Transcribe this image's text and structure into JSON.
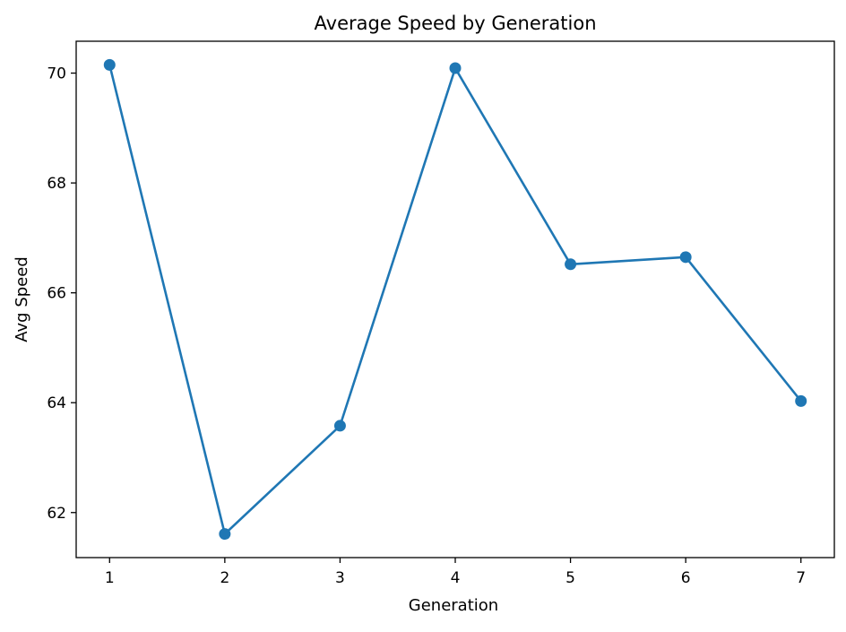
{
  "chart_data": {
    "type": "line",
    "title": "Average Speed by Generation",
    "xlabel": "Generation",
    "ylabel": "Avg Speed",
    "x": [
      1,
      2,
      3,
      4,
      5,
      6,
      7
    ],
    "series": [
      {
        "values": [
          70.15,
          61.61,
          63.58,
          70.09,
          66.52,
          66.65,
          64.03
        ],
        "color": "#1f77b4",
        "marker": "circle"
      }
    ],
    "xticks": [
      "1",
      "2",
      "3",
      "4",
      "5",
      "6",
      "7"
    ],
    "yticks": [
      62,
      64,
      66,
      68,
      70
    ],
    "xlim": [
      0.71,
      7.29
    ],
    "ylim": [
      61.18,
      70.58
    ],
    "grid": false,
    "legend": "none"
  }
}
